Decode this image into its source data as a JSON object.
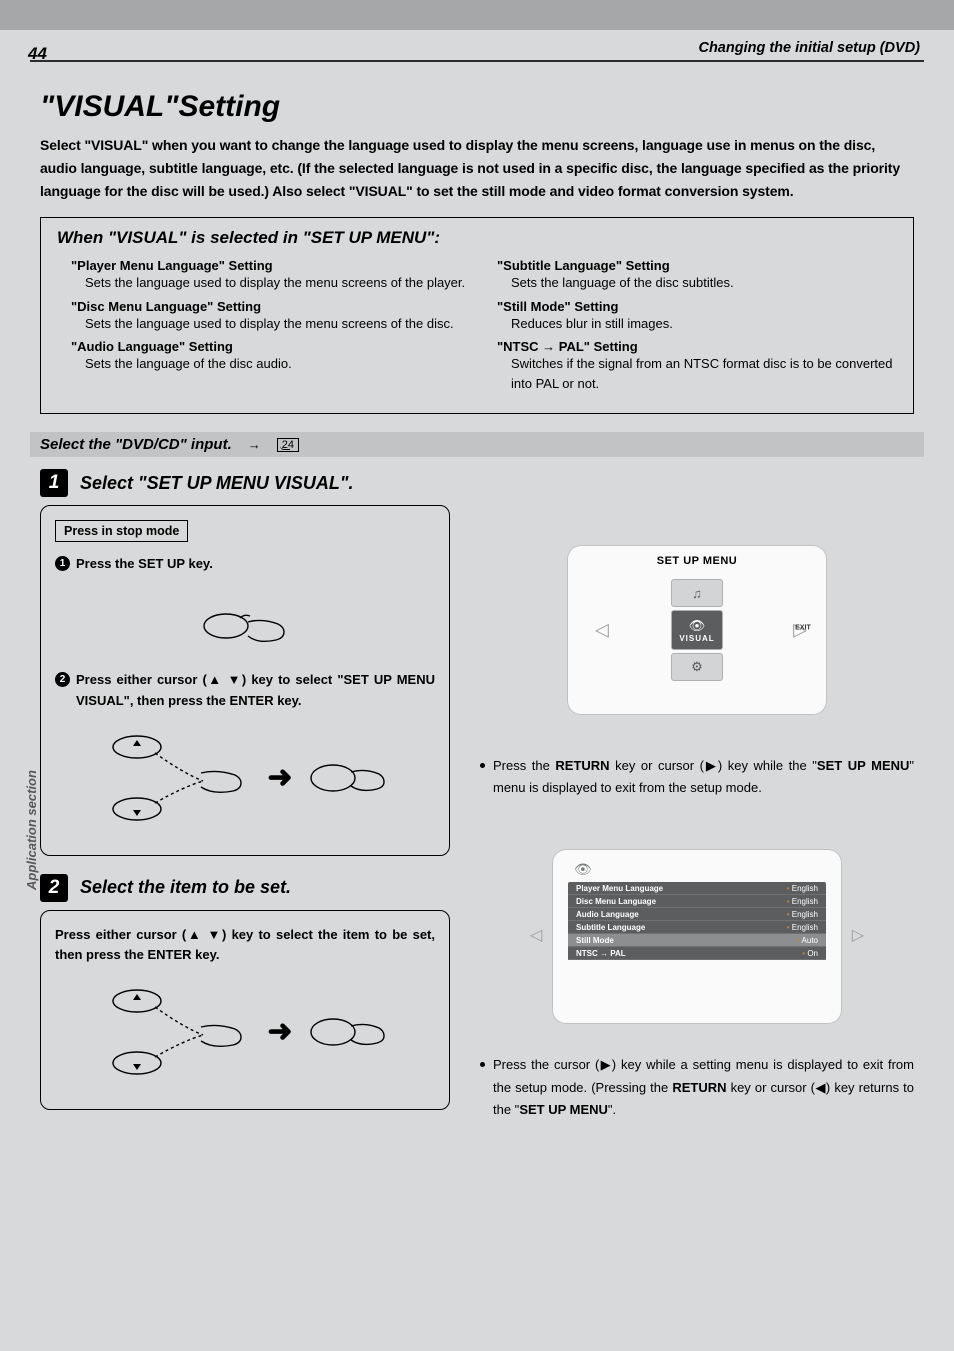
{
  "page": {
    "number": "44",
    "header_right": "Changing the initial setup (DVD)",
    "side_label": "Application section"
  },
  "title": "\"VISUAL\"Setting",
  "intro": "Select \"VISUAL\" when you want to change the language used to display the menu screens, language use in menus on the disc, audio language, subtitle language, etc. (If the selected language is not used in a specific disc, the language specified as the priority language for the disc will be used.) Also select \"VISUAL\" to set the still mode and video format conversion system.",
  "box": {
    "title": "When \"VISUAL\" is selected in \"SET UP MENU\":",
    "left": [
      {
        "t": "\"Player Menu Language\" Setting",
        "d": "Sets the language used to display the menu screens of the player."
      },
      {
        "t": "\"Disc Menu Language\" Setting",
        "d": "Sets the language used to display the menu screens of the disc."
      },
      {
        "t": "\"Audio Language\" Setting",
        "d": "Sets the language of the disc audio."
      }
    ],
    "right": [
      {
        "t": "\"Subtitle Language\" Setting",
        "d": "Sets the language of the disc subtitles."
      },
      {
        "t": "\"Still Mode\" Setting",
        "d": "Reduces blur in still images."
      },
      {
        "t": "\"NTSC → PAL\" Setting",
        "d": "Switches if the signal from an NTSC format disc is to be converted into PAL or not."
      }
    ]
  },
  "select_input": {
    "text": "Select the \"DVD/CD\" input.",
    "page_ref": "24"
  },
  "step1": {
    "num": "1",
    "title": "Select \"SET UP MENU VISUAL\".",
    "press_box": "Press in stop mode",
    "sub1": "Press the SET UP key.",
    "sub2": "Press either cursor (▲ ▼) key to select \"SET UP MENU  VISUAL\", then press the ENTER key."
  },
  "step2": {
    "num": "2",
    "title": "Select the item to be set.",
    "text": "Press either cursor (▲ ▼) key to select the item to be set, then press the ENTER key."
  },
  "menu_screen": {
    "title": "SET UP MENU",
    "center_label": "VISUAL",
    "exit": "EXIT"
  },
  "note1_parts": [
    "Press the ",
    "RETURN",
    " key or cursor (▶) key while the \"",
    "SET UP MENU",
    "\" menu is displayed to exit from the setup mode."
  ],
  "settings": {
    "rows": [
      {
        "k": "Player Menu Language",
        "v": "English",
        "hl": false
      },
      {
        "k": "Disc Menu Language",
        "v": "English",
        "hl": false
      },
      {
        "k": "Audio Language",
        "v": "English",
        "hl": false
      },
      {
        "k": "Subtitle Language",
        "v": "English",
        "hl": false
      },
      {
        "k": "Still Mode",
        "v": "Auto",
        "hl": true
      },
      {
        "k": "NTSC → PAL",
        "v": "On",
        "hl": false
      }
    ]
  },
  "note2_parts": [
    "Press the cursor (▶) key while a setting menu is displayed to exit from the setup mode. (Pressing the ",
    "RETURN",
    " key or cursor (◀) key returns to the \"",
    "SET UP MENU",
    "\"."
  ],
  "colors": {
    "topbar": "#a5a7a9",
    "page_bg": "#d8d9da",
    "grey_strip": "#c1c3c5",
    "menu_dark": "#5b5d5f",
    "menu_light": "#d3d4d5"
  }
}
